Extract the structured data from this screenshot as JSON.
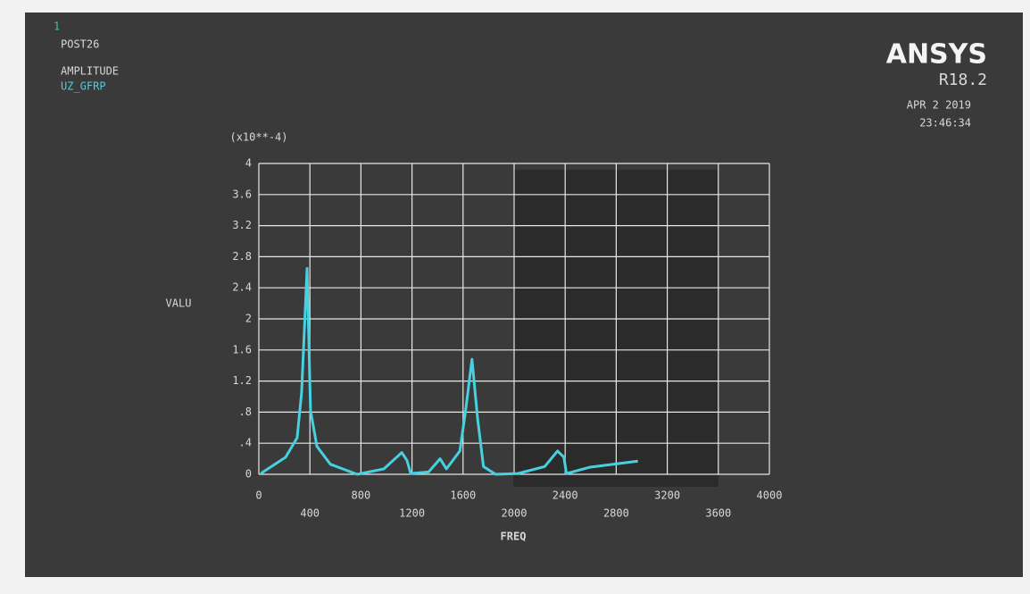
{
  "chart_data": {
    "type": "line",
    "window_number": "1",
    "header_lines": [
      "POST26",
      "AMPLITUDE"
    ],
    "series": [
      {
        "name": "UZ_GFRP",
        "color": "#46d0e0",
        "x": [
          15,
          210,
          300,
          335,
          378,
          405,
          455,
          560,
          770,
          980,
          1120,
          1160,
          1190,
          1330,
          1420,
          1470,
          1575,
          1620,
          1670,
          1715,
          1760,
          1855,
          2030,
          2240,
          2340,
          2390,
          2410,
          2590,
          2970
        ],
        "values": [
          0.01,
          0.22,
          0.47,
          1.05,
          2.65,
          0.82,
          0.36,
          0.13,
          0,
          0.07,
          0.28,
          0.18,
          0.01,
          0.03,
          0.2,
          0.07,
          0.3,
          0.82,
          1.48,
          0.7,
          0.1,
          0,
          0.01,
          0.1,
          0.3,
          0.22,
          0.01,
          0.09,
          0.17
        ]
      }
    ],
    "logo": "ANSYS",
    "version": "R18.2",
    "date": "APR  2 2019",
    "time": "23:46:34",
    "y_multiplier": "(x10**-4)",
    "y_label": "VALU",
    "x_label": "FREQ",
    "xlim": [
      0,
      4000
    ],
    "xticks": [
      0,
      400,
      800,
      1200,
      1600,
      2000,
      2400,
      2800,
      3200,
      3600,
      4000
    ],
    "ylim": [
      0,
      4
    ],
    "yticks": [
      0,
      {
        "value": 0.4,
        "label": ".4"
      },
      {
        "value": 0.8,
        "label": ".8"
      },
      1.2,
      1.6,
      2,
      2.4,
      2.8,
      3.2,
      3.6,
      4
    ],
    "grid": true
  }
}
